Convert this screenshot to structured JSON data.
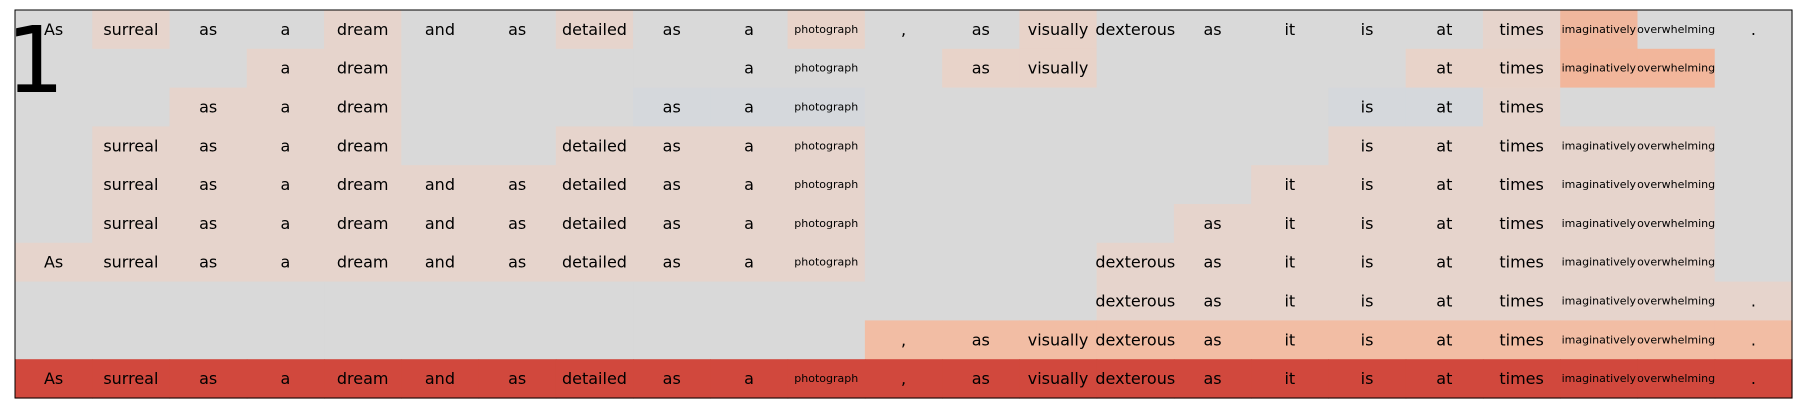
{
  "panel_label": "1",
  "chart_data": {
    "type": "heatmap",
    "tokens": [
      "As",
      "surreal",
      "as",
      "a",
      "dream",
      "and",
      "as",
      "detailed",
      "as",
      "a",
      "photograph",
      ",",
      "as",
      "visually",
      "dexterous",
      "as",
      "it",
      "is",
      "at",
      "times",
      "imaginatively",
      "overwhelming",
      "."
    ],
    "rows": [
      {
        "present": [
          1,
          1,
          1,
          1,
          1,
          1,
          1,
          1,
          1,
          1,
          1,
          1,
          1,
          1,
          1,
          1,
          1,
          1,
          1,
          1,
          1,
          1,
          1
        ],
        "colors": [
          "#d9d9d9",
          "#e6d4cc",
          "#d9d9d9",
          "#d9d9d9",
          "#e6d4cc",
          "#d9d9d9",
          "#d9d9d9",
          "#e6d4cc",
          "#d9d9d9",
          "#d9d9d9",
          "#e8d3c9",
          "#d9d9d9",
          "#d9d9d9",
          "#e8d3c9",
          "#d9d9d9",
          "#d9d9d9",
          "#d9d9d9",
          "#d9d9d9",
          "#d9d9d9",
          "#e6d4cc",
          "#f0b79d",
          "#d9d9d9",
          "#d9d9d9"
        ]
      },
      {
        "present": [
          0,
          0,
          0,
          1,
          1,
          0,
          0,
          0,
          0,
          1,
          1,
          0,
          1,
          1,
          0,
          0,
          0,
          0,
          1,
          1,
          1,
          1,
          0
        ],
        "colors": [
          "#d9d9d9",
          "#d9d9d9",
          "#d9d9d9",
          "#e6d4cc",
          "#e6d4cc",
          "#d9d9d9",
          "#d9d9d9",
          "#d9d9d9",
          "#d9d9d9",
          "#d9d9d9",
          "#d9d9d9",
          "#d9d9d9",
          "#e8d3c9",
          "#e8d3c9",
          "#d9d9d9",
          "#d9d9d9",
          "#d9d9d9",
          "#d9d9d9",
          "#e8d3c9",
          "#e8d3c9",
          "#f2b69b",
          "#f2b69b",
          "#d9d9d9"
        ]
      },
      {
        "present": [
          0,
          0,
          1,
          1,
          1,
          0,
          0,
          0,
          1,
          1,
          1,
          0,
          0,
          0,
          0,
          0,
          0,
          1,
          1,
          1,
          0,
          0,
          0
        ],
        "colors": [
          "#d9d9d9",
          "#d9d9d9",
          "#e6d4cc",
          "#e6d4cc",
          "#e6d4cc",
          "#d9d9d9",
          "#d9d9d9",
          "#d9d9d9",
          "#d5d8dc",
          "#d5d8dc",
          "#d5d8dc",
          "#d9d9d9",
          "#d9d9d9",
          "#d9d9d9",
          "#d9d9d9",
          "#d9d9d9",
          "#d9d9d9",
          "#d5d8dc",
          "#d5d8dc",
          "#e6d4cc",
          "#d9d9d9",
          "#d9d9d9",
          "#d9d9d9"
        ]
      },
      {
        "present": [
          0,
          1,
          1,
          1,
          1,
          0,
          0,
          1,
          1,
          1,
          1,
          0,
          0,
          0,
          0,
          0,
          0,
          1,
          1,
          1,
          1,
          1,
          0
        ],
        "colors": [
          "#d9d9d9",
          "#e6d4cc",
          "#e6d4cc",
          "#e6d4cc",
          "#e6d4cc",
          "#d9d9d9",
          "#d9d9d9",
          "#e6d4cc",
          "#e6d4cc",
          "#e6d4cc",
          "#e6d4cc",
          "#d9d9d9",
          "#d9d9d9",
          "#d9d9d9",
          "#d9d9d9",
          "#d9d9d9",
          "#d9d9d9",
          "#e6d4cc",
          "#e6d4cc",
          "#e6d4cc",
          "#e6d4cc",
          "#e6d4cc",
          "#d9d9d9"
        ]
      },
      {
        "present": [
          0,
          1,
          1,
          1,
          1,
          1,
          1,
          1,
          1,
          1,
          1,
          0,
          0,
          0,
          0,
          0,
          1,
          1,
          1,
          1,
          1,
          1,
          0
        ],
        "colors": [
          "#d9d9d9",
          "#e6d4cc",
          "#e6d4cc",
          "#e6d4cc",
          "#e6d4cc",
          "#e6d4cc",
          "#e6d4cc",
          "#e6d4cc",
          "#e6d4cc",
          "#e6d4cc",
          "#e6d4cc",
          "#d9d9d9",
          "#d9d9d9",
          "#d9d9d9",
          "#d9d9d9",
          "#d9d9d9",
          "#e6d4cc",
          "#e6d4cc",
          "#e6d4cc",
          "#e6d4cc",
          "#e6d4cc",
          "#e6d4cc",
          "#d9d9d9"
        ]
      },
      {
        "present": [
          0,
          1,
          1,
          1,
          1,
          1,
          1,
          1,
          1,
          1,
          1,
          0,
          0,
          0,
          0,
          1,
          1,
          1,
          1,
          1,
          1,
          1,
          0
        ],
        "colors": [
          "#d9d9d9",
          "#e6d4cc",
          "#e6d4cc",
          "#e6d4cc",
          "#e6d4cc",
          "#e6d4cc",
          "#e6d4cc",
          "#e6d4cc",
          "#e6d4cc",
          "#e6d4cc",
          "#e6d4cc",
          "#d9d9d9",
          "#d9d9d9",
          "#d9d9d9",
          "#d9d9d9",
          "#e6d4cc",
          "#e6d4cc",
          "#e6d4cc",
          "#e6d4cc",
          "#e6d4cc",
          "#e6d4cc",
          "#e6d4cc",
          "#d9d9d9"
        ]
      },
      {
        "present": [
          1,
          1,
          1,
          1,
          1,
          1,
          1,
          1,
          1,
          1,
          1,
          0,
          0,
          0,
          1,
          1,
          1,
          1,
          1,
          1,
          1,
          1,
          0
        ],
        "colors": [
          "#e6d4cc",
          "#e6d4cc",
          "#e6d4cc",
          "#e6d4cc",
          "#e6d4cc",
          "#e6d4cc",
          "#e6d4cc",
          "#e6d4cc",
          "#e6d4cc",
          "#e6d4cc",
          "#e6d4cc",
          "#d9d9d9",
          "#d9d9d9",
          "#d9d9d9",
          "#e6d4cc",
          "#e6d4cc",
          "#e6d4cc",
          "#e6d4cc",
          "#e6d4cc",
          "#e6d4cc",
          "#e6d4cc",
          "#e6d4cc",
          "#d9d9d9"
        ]
      },
      {
        "present": [
          0,
          0,
          0,
          0,
          0,
          0,
          0,
          0,
          0,
          0,
          0,
          0,
          0,
          0,
          1,
          1,
          1,
          1,
          1,
          1,
          1,
          1,
          1
        ],
        "colors": [
          "#d9d9d9",
          "#d9d9d9",
          "#d9d9d9",
          "#d9d9d9",
          "#d9d9d9",
          "#d9d9d9",
          "#d9d9d9",
          "#d9d9d9",
          "#d9d9d9",
          "#d9d9d9",
          "#d9d9d9",
          "#d9d9d9",
          "#d9d9d9",
          "#d9d9d9",
          "#e6d4cc",
          "#e6d4cc",
          "#e6d4cc",
          "#e6d4cc",
          "#e6d4cc",
          "#e6d4cc",
          "#e6d4cc",
          "#e6d4cc",
          "#e6d4cc"
        ]
      },
      {
        "present": [
          0,
          0,
          0,
          0,
          0,
          0,
          0,
          0,
          0,
          0,
          0,
          1,
          1,
          1,
          1,
          1,
          1,
          1,
          1,
          1,
          1,
          1,
          1
        ],
        "colors": [
          "#d9d9d9",
          "#d9d9d9",
          "#d9d9d9",
          "#d9d9d9",
          "#d9d9d9",
          "#d9d9d9",
          "#d9d9d9",
          "#d9d9d9",
          "#d9d9d9",
          "#d9d9d9",
          "#d9d9d9",
          "#f2bda4",
          "#f2bda4",
          "#f2bda4",
          "#f2bda4",
          "#f2bda4",
          "#f2bda4",
          "#f2bda4",
          "#f2bda4",
          "#f2bda4",
          "#f2bda4",
          "#f2bda4",
          "#f2bda4"
        ]
      },
      {
        "present": [
          1,
          1,
          1,
          1,
          1,
          1,
          1,
          1,
          1,
          1,
          1,
          1,
          1,
          1,
          1,
          1,
          1,
          1,
          1,
          1,
          1,
          1,
          1
        ],
        "colors": [
          "#d1483d",
          "#d1483d",
          "#d1483d",
          "#d1483d",
          "#d1483d",
          "#d1483d",
          "#d1483d",
          "#d1483d",
          "#d1483d",
          "#d1483d",
          "#d1483d",
          "#d1483d",
          "#d1483d",
          "#d1483d",
          "#d1483d",
          "#d1483d",
          "#d1483d",
          "#d1483d",
          "#d1483d",
          "#d1483d",
          "#d1483d",
          "#d1483d",
          "#d1483d"
        ]
      }
    ]
  }
}
